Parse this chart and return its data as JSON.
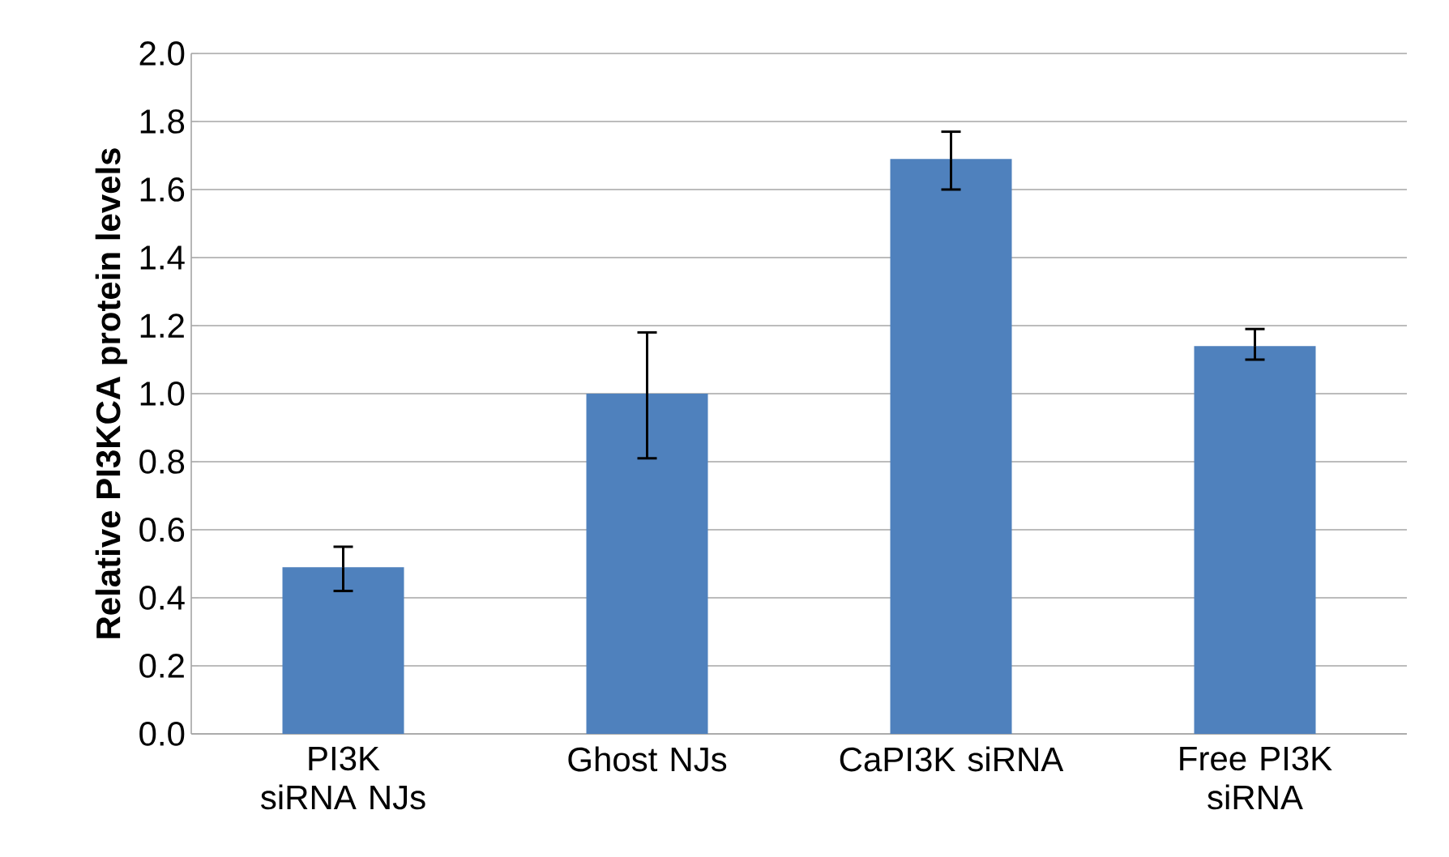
{
  "chart_data": {
    "type": "bar",
    "ylabel": "Relative PI3KCA protein levels",
    "categories": [
      "PI3K siRNA NJs",
      "Ghost NJs",
      "CaPI3K siRNA",
      "Free PI3K siRNA"
    ],
    "values": [
      0.49,
      1.0,
      1.69,
      1.14
    ],
    "errors": [
      [
        0.42,
        0.55
      ],
      [
        0.81,
        1.18
      ],
      [
        1.6,
        1.77
      ],
      [
        1.1,
        1.19
      ]
    ],
    "color": "#4f81bd",
    "ylim": [
      0,
      2.0
    ],
    "yticks": [
      {
        "value": 0,
        "label": "0.0"
      },
      {
        "value": 0.2,
        "label": "0.2"
      },
      {
        "value": 0.4,
        "label": "0.4"
      },
      {
        "value": 0.6,
        "label": "0.6"
      },
      {
        "value": 0.8,
        "label": "0.8"
      },
      {
        "value": 1.0,
        "label": "1.0"
      },
      {
        "value": 1.2,
        "label": "1.2"
      },
      {
        "value": 1.4,
        "label": "1.4"
      },
      {
        "value": 1.6,
        "label": "1.6"
      },
      {
        "value": 1.8,
        "label": "1.8"
      },
      {
        "value": 2.0,
        "label": "2.0"
      }
    ],
    "grid": "y"
  }
}
